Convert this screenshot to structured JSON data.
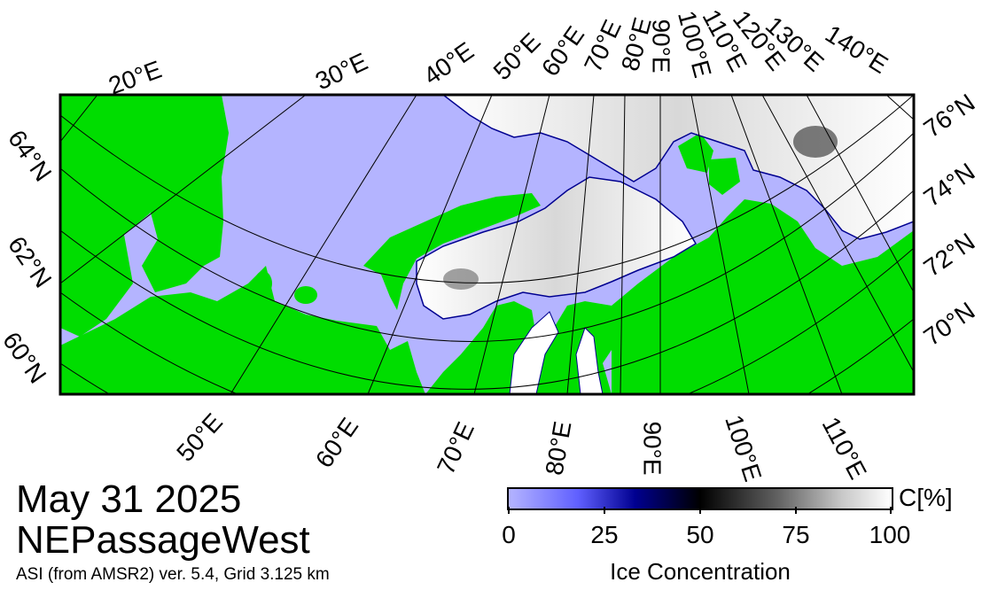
{
  "map": {
    "date": "May 31 2025",
    "region": "NEPassageWest",
    "product": "ASI (from AMSR2) ver. 5.4,  Grid 3.125 km",
    "colors": {
      "ocean": "#b4b4ff",
      "land": "#00dd00",
      "ice_high": "#ffffff",
      "ice_mid": "#000000",
      "ice_low": "#000090",
      "grid": "#000000"
    }
  },
  "labels": {
    "top_lon": [
      "20°E",
      "30°E",
      "40°E",
      "50°E",
      "60°E",
      "70°E",
      "80°E",
      "90°E",
      "100°E",
      "110°E",
      "120°E",
      "130°E",
      "140°E"
    ],
    "bottom_lon": [
      "50°E",
      "60°E",
      "70°E",
      "80°E",
      "90°E",
      "100°E",
      "110°E"
    ],
    "left_lat": [
      "64°N",
      "62°N",
      "60°N"
    ],
    "right_lat": [
      "76°N",
      "74°N",
      "72°N",
      "70°N"
    ]
  },
  "colorbar": {
    "title": "Ice Concentration",
    "unit": "C[%]",
    "ticks": [
      "0",
      "25",
      "50",
      "75",
      "100"
    ]
  }
}
